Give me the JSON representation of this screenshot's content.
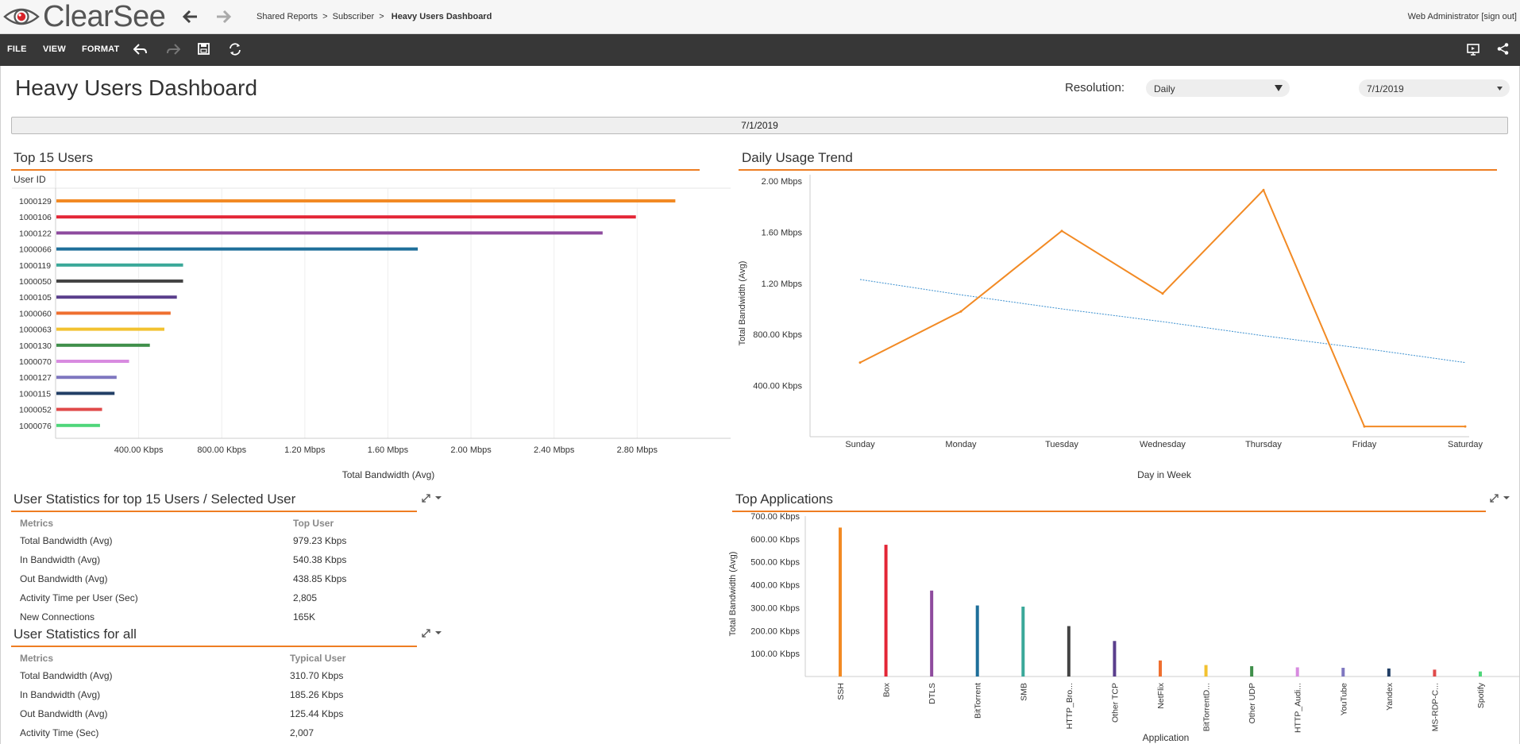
{
  "header": {
    "brand": "ClearSee",
    "breadcrumb": {
      "part1": "Shared Reports",
      "sep1": ">",
      "part2": "Subscriber",
      "sep2": ">",
      "current": "Heavy Users Dashboard"
    },
    "user": "Web Administrator [sign out]"
  },
  "toolbar": {
    "file": "FILE",
    "view": "VIEW",
    "format": "FORMAT"
  },
  "page": {
    "title": "Heavy Users Dashboard",
    "resolution_label": "Resolution:",
    "resolution_value": "Daily",
    "date_value": "7/1/2019",
    "date_bar": "7/1/2019"
  },
  "sections": {
    "top_users": "Top 15 Users",
    "trend": "Daily Usage Trend",
    "user_stats": "User Statistics for top 15 Users / Selected User",
    "all_stats": "User Statistics for all",
    "top_apps": "Top Applications"
  },
  "user_stats": {
    "col_metric": "Metrics",
    "col_value": "Top User",
    "rows": [
      {
        "metric": "Total Bandwidth (Avg)",
        "value": "979.23 Kbps"
      },
      {
        "metric": "In Bandwidth (Avg)",
        "value": "540.38 Kbps"
      },
      {
        "metric": "Out Bandwidth (Avg)",
        "value": "438.85 Kbps"
      },
      {
        "metric": "Activity Time per User (Sec)",
        "value": "2,805"
      },
      {
        "metric": "New Connections",
        "value": "165K"
      }
    ]
  },
  "all_stats": {
    "col_metric": "Metrics",
    "col_value": "Typical User",
    "rows": [
      {
        "metric": "Total Bandwidth (Avg)",
        "value": "310.70 Kbps"
      },
      {
        "metric": "In Bandwidth (Avg)",
        "value": "185.26 Kbps"
      },
      {
        "metric": "Out Bandwidth (Avg)",
        "value": "125.44 Kbps"
      },
      {
        "metric": "Activity Time (Sec)",
        "value": "2,007"
      }
    ]
  },
  "chart_data": [
    {
      "type": "bar",
      "orientation": "horizontal",
      "ylabel": "User ID",
      "xlabel": "Total Bandwidth (Avg)",
      "xlim": [
        0,
        3.25
      ],
      "tick_values": [
        0.4,
        0.8,
        1.2,
        1.6,
        2.0,
        2.4,
        2.8
      ],
      "tick_labels": [
        "400.00 Kbps",
        "800.00 Kbps",
        "1.20 Mbps",
        "1.60 Mbps",
        "2.00 Mbps",
        "2.40 Mbps",
        "2.80 Mbps"
      ],
      "categories": [
        "1000129",
        "1000106",
        "1000122",
        "1000066",
        "1000119",
        "1000050",
        "1000105",
        "1000060",
        "1000063",
        "1000130",
        "1000070",
        "1000127",
        "1000115",
        "1000052",
        "1000076"
      ],
      "values": [
        2.98,
        2.79,
        2.63,
        1.74,
        0.61,
        0.61,
        0.58,
        0.55,
        0.52,
        0.45,
        0.35,
        0.29,
        0.28,
        0.22,
        0.21
      ],
      "colors": [
        "#f28a24",
        "#e32636",
        "#8e4b9e",
        "#1e6f9a",
        "#3aa899",
        "#444444",
        "#5a3e8c",
        "#ef6f2f",
        "#f2c230",
        "#3f8f4a",
        "#d88be0",
        "#7f77c0",
        "#223f66",
        "#e04a4a",
        "#4fd67a"
      ]
    },
    {
      "type": "line",
      "xlabel": "Day in Week",
      "ylabel": "Total Bandwidth (Avg)",
      "ylim": [
        0,
        2.05
      ],
      "tick_values": [
        0.4,
        0.8,
        1.2,
        1.6,
        2.0
      ],
      "tick_labels": [
        "400.00 Kbps",
        "800.00 Kbps",
        "1.20 Mbps",
        "1.60 Mbps",
        "2.00 Mbps"
      ],
      "x": [
        "Sunday",
        "Monday",
        "Tuesday",
        "Wednesday",
        "Thursday",
        "Friday",
        "Saturday"
      ],
      "series": [
        {
          "values": [
            0.58,
            0.98,
            1.61,
            1.12,
            1.93,
            0.08,
            0.08
          ],
          "color": "#f28a24"
        }
      ],
      "trendline": {
        "values": [
          1.23,
          1.11,
          1.0,
          0.9,
          0.79,
          0.69,
          0.58
        ],
        "color": "#3a8fcf",
        "dashed": true
      }
    },
    {
      "type": "bar",
      "xlabel": "Application",
      "ylabel": "Total Bandwidth (Avg)",
      "ylim": [
        0,
        700
      ],
      "tick_values": [
        100,
        200,
        300,
        400,
        500,
        600,
        700
      ],
      "tick_labels": [
        "100.00 Kbps",
        "200.00 Kbps",
        "300.00 Kbps",
        "400.00 Kbps",
        "500.00 Kbps",
        "600.00 Kbps",
        "700.00 Kbps"
      ],
      "categories": [
        "SSH",
        "Box",
        "DTLS",
        "BitTorrent",
        "SMB",
        "HTTP_Bro...",
        "Other TCP",
        "NetFlix",
        "BitTorrentD...",
        "Other UDP",
        "HTTP_Audi...",
        "YouTube",
        "Yandex",
        "MS-RDP-C...",
        "Spotify"
      ],
      "values": [
        650,
        575,
        375,
        310,
        305,
        220,
        155,
        70,
        50,
        45,
        40,
        38,
        35,
        30,
        22
      ],
      "colors": [
        "#f28a24",
        "#e32636",
        "#8e4b9e",
        "#1e6f9a",
        "#3aa899",
        "#444444",
        "#5a3e8c",
        "#ef6f2f",
        "#f2c230",
        "#3f8f4a",
        "#d88be0",
        "#7f77c0",
        "#223f66",
        "#e04a4a",
        "#4fd67a"
      ]
    }
  ]
}
